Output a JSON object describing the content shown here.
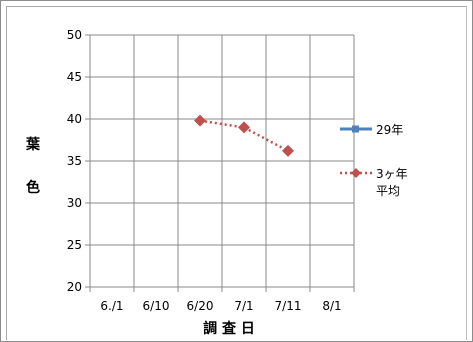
{
  "chart_data": {
    "type": "line",
    "title": "",
    "xlabel": "調 査 日",
    "ylabel": "葉色",
    "ylabel_chars": [
      "葉",
      "色"
    ],
    "ylim": [
      20,
      50
    ],
    "yticks": [
      20,
      25,
      30,
      35,
      40,
      45,
      50
    ],
    "xticks": [
      "6./1",
      "6/10",
      "6/20",
      "7/1",
      "7/11",
      "8/1"
    ],
    "xlim": [
      0,
      6
    ],
    "grid": true,
    "legend_position": "right",
    "series": [
      {
        "name": "29年",
        "color": "#4f81bd",
        "style": "solid",
        "marker": "square",
        "points": []
      },
      {
        "name": "3ヶ年平均",
        "name_lines": [
          "3ヶ年",
          "平均"
        ],
        "color": "#c0504d",
        "style": "dotted",
        "marker": "diamond",
        "points": [
          {
            "x": 2.5,
            "y": 39.8
          },
          {
            "x": 3.5,
            "y": 39.0
          },
          {
            "x": 4.5,
            "y": 36.2
          }
        ]
      }
    ]
  }
}
